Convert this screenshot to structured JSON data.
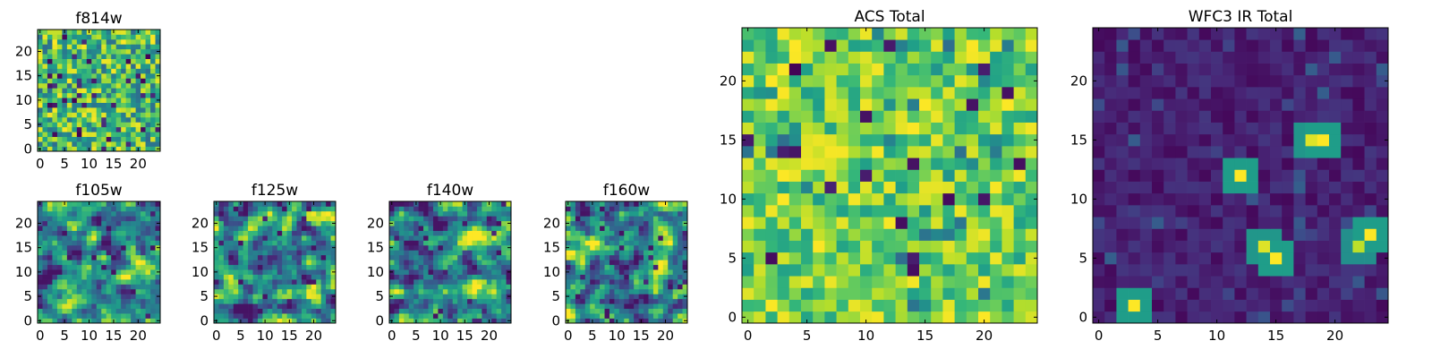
{
  "figure": {
    "background": "#ffffff"
  },
  "colormap": {
    "name": "viridis",
    "stops": [
      "#440154",
      "#482878",
      "#3e4989",
      "#31688e",
      "#26828e",
      "#1f9e89",
      "#35b779",
      "#6ece58",
      "#b5de2b",
      "#fde725"
    ]
  },
  "chart_data": [
    {
      "id": "f814w",
      "type": "heatmap",
      "title": "f814w",
      "grid_size": 25,
      "clim": [
        0,
        1
      ],
      "texture": "noise",
      "seed": 814,
      "xticks": [
        0,
        5,
        10,
        15,
        20
      ],
      "yticks": [
        0,
        5,
        10,
        15,
        20
      ],
      "xlim": [
        -0.5,
        24.5
      ],
      "ylim": [
        -0.5,
        24.5
      ]
    },
    {
      "id": "f105w",
      "type": "heatmap",
      "title": "f105w",
      "grid_size": 25,
      "clim": [
        0,
        1
      ],
      "texture": "smooth",
      "seed": 105,
      "xticks": [
        0,
        5,
        10,
        15,
        20
      ],
      "yticks": [
        0,
        5,
        10,
        15,
        20
      ],
      "xlim": [
        -0.5,
        24.5
      ],
      "ylim": [
        -0.5,
        24.5
      ]
    },
    {
      "id": "f125w",
      "type": "heatmap",
      "title": "f125w",
      "grid_size": 25,
      "clim": [
        0,
        1
      ],
      "texture": "smooth",
      "seed": 125,
      "xticks": [
        0,
        5,
        10,
        15,
        20
      ],
      "yticks": [
        0,
        5,
        10,
        15,
        20
      ],
      "xlim": [
        -0.5,
        24.5
      ],
      "ylim": [
        -0.5,
        24.5
      ]
    },
    {
      "id": "f140w",
      "type": "heatmap",
      "title": "f140w",
      "grid_size": 25,
      "clim": [
        0,
        1
      ],
      "texture": "smooth",
      "seed": 140,
      "xticks": [
        0,
        5,
        10,
        15,
        20
      ],
      "yticks": [
        0,
        5,
        10,
        15,
        20
      ],
      "xlim": [
        -0.5,
        24.5
      ],
      "ylim": [
        -0.5,
        24.5
      ]
    },
    {
      "id": "f160w",
      "type": "heatmap",
      "title": "f160w",
      "grid_size": 25,
      "clim": [
        0,
        1
      ],
      "texture": "smooth",
      "seed": 160,
      "xticks": [
        0,
        5,
        10,
        15,
        20
      ],
      "yticks": [
        0,
        5,
        10,
        15,
        20
      ],
      "xlim": [
        -0.5,
        24.5
      ],
      "ylim": [
        -0.5,
        24.5
      ]
    },
    {
      "id": "acs-total",
      "type": "heatmap",
      "title": "ACS Total",
      "grid_size": 25,
      "clim": [
        0,
        1
      ],
      "texture": "bright",
      "seed": 999,
      "xticks": [
        0,
        5,
        10,
        15,
        20
      ],
      "yticks": [
        0,
        5,
        10,
        15,
        20
      ],
      "xlim": [
        -0.5,
        24.5
      ],
      "ylim": [
        -0.5,
        24.5
      ]
    },
    {
      "id": "wfc3-ir-total",
      "type": "heatmap",
      "title": "WFC3 IR Total",
      "grid_size": 25,
      "clim": [
        0,
        1
      ],
      "texture": "sources",
      "seed": 333,
      "sources": [
        {
          "x": 3,
          "y": 1,
          "peak": 1.0
        },
        {
          "x": 12,
          "y": 12,
          "peak": 1.0
        },
        {
          "x": 14,
          "y": 6,
          "peak": 0.95
        },
        {
          "x": 15,
          "y": 5,
          "peak": 1.0
        },
        {
          "x": 18,
          "y": 15,
          "peak": 0.95
        },
        {
          "x": 19,
          "y": 15,
          "peak": 1.0
        },
        {
          "x": 22,
          "y": 6,
          "peak": 0.9
        },
        {
          "x": 23,
          "y": 7,
          "peak": 1.0
        }
      ],
      "xticks": [
        0,
        5,
        10,
        15,
        20
      ],
      "yticks": [
        0,
        5,
        10,
        15,
        20
      ],
      "xlim": [
        -0.5,
        24.5
      ],
      "ylim": [
        -0.5,
        24.5
      ]
    }
  ]
}
